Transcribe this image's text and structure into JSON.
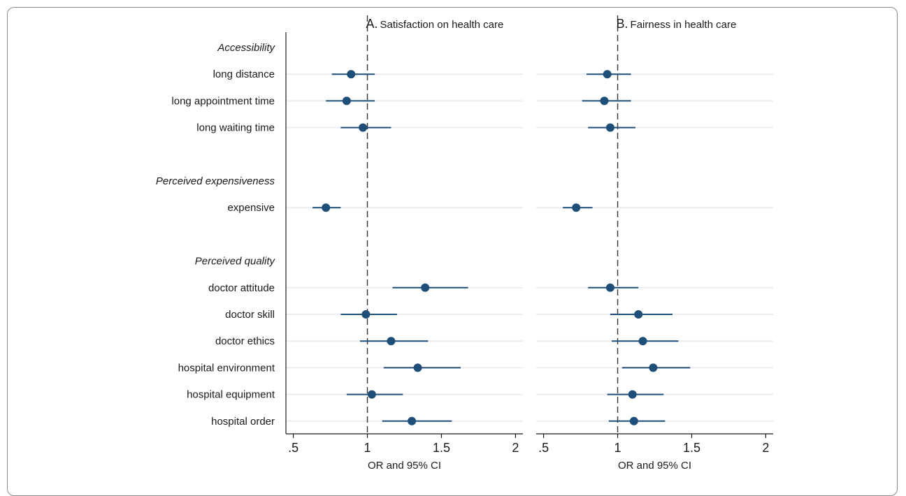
{
  "chart_data": {
    "type": "forest",
    "xlabel": "OR and 95% CI",
    "x_ticks": [
      ".5",
      "1",
      "1.5",
      "2"
    ],
    "x_tick_values": [
      0.5,
      1,
      1.5,
      2
    ],
    "xlim": [
      0.45,
      2.05
    ],
    "reference_line": 1,
    "groups": [
      {
        "label": "Accessibility",
        "items": [
          "long distance",
          "long appointment time",
          "long waiting time"
        ]
      },
      {
        "label": "Perceived expensiveness",
        "items": [
          "expensive"
        ]
      },
      {
        "label": "Perceived quality",
        "items": [
          "doctor attitude",
          "doctor skill",
          "doctor ethics",
          "hospital environment",
          "hospital equipment",
          "hospital order"
        ]
      }
    ],
    "panels": [
      {
        "letter": "A.",
        "title": "Satisfaction on health care",
        "estimates": [
          {
            "label": "long distance",
            "or": 0.89,
            "lo": 0.76,
            "hi": 1.05
          },
          {
            "label": "long appointment time",
            "or": 0.86,
            "lo": 0.72,
            "hi": 1.05
          },
          {
            "label": "long waiting time",
            "or": 0.97,
            "lo": 0.82,
            "hi": 1.16
          },
          {
            "label": "expensive",
            "or": 0.72,
            "lo": 0.63,
            "hi": 0.82
          },
          {
            "label": "doctor attitude",
            "or": 1.39,
            "lo": 1.17,
            "hi": 1.68
          },
          {
            "label": "doctor skill",
            "or": 0.99,
            "lo": 0.82,
            "hi": 1.2
          },
          {
            "label": "doctor ethics",
            "or": 1.16,
            "lo": 0.95,
            "hi": 1.41
          },
          {
            "label": "hospital environment",
            "or": 1.34,
            "lo": 1.11,
            "hi": 1.63
          },
          {
            "label": "hospital equipment",
            "or": 1.03,
            "lo": 0.86,
            "hi": 1.24
          },
          {
            "label": "hospital order",
            "or": 1.3,
            "lo": 1.1,
            "hi": 1.57
          }
        ]
      },
      {
        "letter": "B.",
        "title": "Fairness in health care",
        "estimates": [
          {
            "label": "long distance",
            "or": 0.93,
            "lo": 0.79,
            "hi": 1.09
          },
          {
            "label": "long appointment time",
            "or": 0.91,
            "lo": 0.76,
            "hi": 1.09
          },
          {
            "label": "long waiting time",
            "or": 0.95,
            "lo": 0.8,
            "hi": 1.12
          },
          {
            "label": "expensive",
            "or": 0.72,
            "lo": 0.63,
            "hi": 0.83
          },
          {
            "label": "doctor attitude",
            "or": 0.95,
            "lo": 0.8,
            "hi": 1.14
          },
          {
            "label": "doctor skill",
            "or": 1.14,
            "lo": 0.95,
            "hi": 1.37
          },
          {
            "label": "doctor ethics",
            "or": 1.17,
            "lo": 0.96,
            "hi": 1.41
          },
          {
            "label": "hospital environment",
            "or": 1.24,
            "lo": 1.03,
            "hi": 1.49
          },
          {
            "label": "hospital equipment",
            "or": 1.1,
            "lo": 0.93,
            "hi": 1.31
          },
          {
            "label": "hospital order",
            "or": 1.11,
            "lo": 0.94,
            "hi": 1.32
          }
        ]
      }
    ],
    "colors": {
      "marker": "#1f4e79",
      "ci_line": "#1f4e79",
      "row_line": "#e9eef2",
      "axis": "#1a1a1a",
      "reference_line": "#333333"
    }
  }
}
